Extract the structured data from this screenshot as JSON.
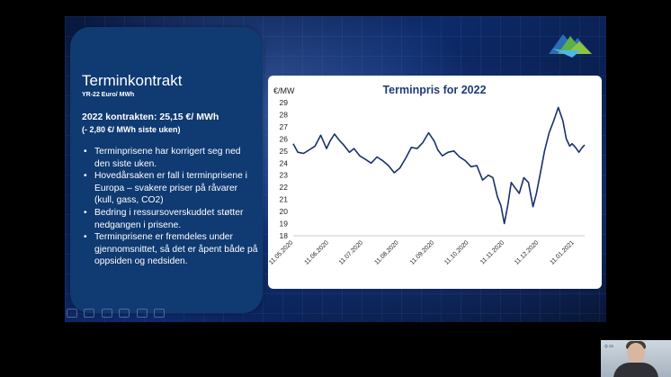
{
  "panel": {
    "title": "Terminkontrakt",
    "subtitle": "YR-22 Euro/ MWh",
    "headline": "2022 kontrakten: 25,15 €/ MWh",
    "subheadline": "(- 2,80 €/ MWh siste uken)",
    "bullets": [
      "Terminprisene har korrigert seg ned den siste uken.",
      "Hovedårsaken er fall i terminprisene i Europa – svakere priser på råvarer (kull, gass, CO2)",
      "Bedring i ressursoverskuddet støtter nedgangen i prisene.",
      "Terminprisene er fremdeles under gjennomsnittet, så det er åpent både på oppsiden og nedsiden."
    ]
  },
  "colors": {
    "panel_bg": "#0f3a72",
    "chart_title": "#1f3b78",
    "line": "#1b2f6b"
  },
  "chart_data": {
    "type": "line",
    "title": "Terminpris for 2022",
    "ylabel": "€/MW",
    "xlabel": "",
    "ylim": [
      18,
      29
    ],
    "yticks": [
      18,
      19,
      20,
      21,
      22,
      23,
      24,
      25,
      26,
      27,
      28,
      29
    ],
    "xtick_labels": [
      "11.05.2020",
      "11.06.2020",
      "11.07.2020",
      "11.08.2020",
      "11.09.2020",
      "11.10.2020",
      "11.11.2020",
      "11.12.2020",
      "11.01.2021"
    ],
    "x": [
      "2020-05-11",
      "2020-05-15",
      "2020-05-20",
      "2020-05-25",
      "2020-05-30",
      "2020-06-04",
      "2020-06-09",
      "2020-06-12",
      "2020-06-16",
      "2020-06-20",
      "2020-06-24",
      "2020-06-29",
      "2020-07-03",
      "2020-07-08",
      "2020-07-13",
      "2020-07-18",
      "2020-07-23",
      "2020-07-28",
      "2020-08-02",
      "2020-08-07",
      "2020-08-12",
      "2020-08-17",
      "2020-08-22",
      "2020-08-27",
      "2020-09-01",
      "2020-09-06",
      "2020-09-11",
      "2020-09-14",
      "2020-09-18",
      "2020-09-23",
      "2020-09-28",
      "2020-10-03",
      "2020-10-08",
      "2020-10-13",
      "2020-10-18",
      "2020-10-23",
      "2020-10-28",
      "2020-11-01",
      "2020-11-05",
      "2020-11-08",
      "2020-11-11",
      "2020-11-14",
      "2020-11-17",
      "2020-11-20",
      "2020-11-24",
      "2020-11-28",
      "2020-12-02",
      "2020-12-06",
      "2020-12-09",
      "2020-12-12",
      "2020-12-16",
      "2020-12-20",
      "2020-12-24",
      "2020-12-28",
      "2021-01-01",
      "2021-01-04",
      "2021-01-07",
      "2021-01-09",
      "2021-01-12",
      "2021-01-15",
      "2021-01-18",
      "2021-01-20"
    ],
    "values": [
      25.6,
      24.9,
      24.8,
      25.1,
      25.4,
      26.3,
      25.2,
      25.8,
      26.4,
      25.9,
      25.5,
      24.9,
      25.2,
      24.6,
      24.3,
      24.0,
      24.5,
      24.2,
      23.8,
      23.2,
      23.6,
      24.4,
      25.3,
      25.2,
      25.7,
      26.5,
      25.8,
      25.1,
      24.6,
      24.9,
      25.0,
      24.5,
      24.2,
      23.7,
      23.8,
      22.6,
      23.0,
      22.8,
      21.2,
      20.5,
      19.0,
      20.5,
      22.4,
      22.0,
      21.5,
      22.8,
      22.4,
      20.4,
      21.5,
      23.0,
      25.0,
      26.5,
      27.5,
      28.6,
      27.5,
      26.0,
      25.4,
      25.6,
      25.3,
      24.9,
      25.3,
      25.5
    ]
  }
}
